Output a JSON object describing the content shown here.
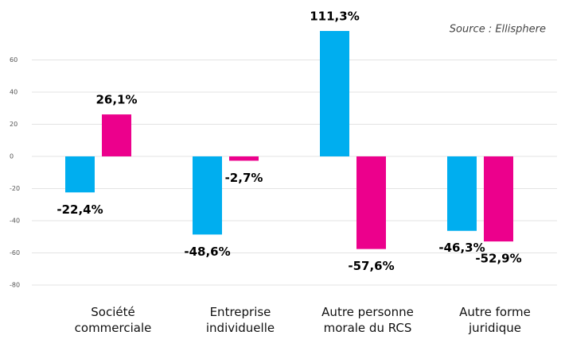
{
  "chart_data": {
    "type": "bar",
    "annotation": "Source : Ellisphere",
    "categories": [
      "Société\ncommerciale",
      "Entreprise\nindividuelle",
      "Autre personne\nmorale du RCS",
      "Autre forme\njuridique"
    ],
    "series": [
      {
        "color": "#00aeef",
        "values": [
          -22.4,
          -48.6,
          111.3,
          -46.3
        ],
        "value_labels": [
          "-22,4%",
          "-48,6%",
          "111,3%",
          "-46,3%"
        ]
      },
      {
        "color": "#ec008c",
        "values": [
          26.1,
          -2.7,
          -57.6,
          -52.9
        ],
        "value_labels": [
          "26,1%",
          "-2,7%",
          "-57,6%",
          "-52,9%"
        ]
      }
    ],
    "ylim": [
      -80,
      78
    ],
    "yticks": [
      -80,
      -60,
      -40,
      -20,
      0,
      20,
      40,
      60
    ],
    "grid": true
  }
}
